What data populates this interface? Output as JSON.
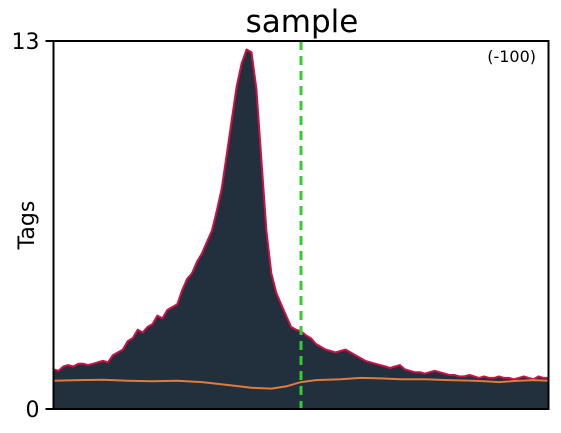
{
  "chart_data": {
    "type": "area",
    "title": "sample",
    "ylabel": "Tags",
    "xlabel": "",
    "annotation": "(-100)",
    "ylim": [
      0,
      13
    ],
    "y_ticks": [
      0,
      13
    ],
    "x_range": [
      0,
      100
    ],
    "grid": false,
    "marker_line": {
      "x": 50,
      "color": "#33cc33",
      "style": "dashed"
    },
    "series": [
      {
        "name": "",
        "kind": "area",
        "fill": "#222f3d",
        "stroke": "#cc1144",
        "points": [
          [
            0,
            1.4
          ],
          [
            1,
            1.35
          ],
          [
            2,
            1.5
          ],
          [
            3,
            1.55
          ],
          [
            4,
            1.5
          ],
          [
            5,
            1.6
          ],
          [
            6,
            1.6
          ],
          [
            7,
            1.55
          ],
          [
            8,
            1.6
          ],
          [
            9,
            1.65
          ],
          [
            10,
            1.7
          ],
          [
            11,
            1.65
          ],
          [
            12,
            1.9
          ],
          [
            13,
            2.0
          ],
          [
            14,
            2.1
          ],
          [
            15,
            2.4
          ],
          [
            16,
            2.5
          ],
          [
            17,
            2.8
          ],
          [
            18,
            2.7
          ],
          [
            19,
            2.9
          ],
          [
            20,
            3.0
          ],
          [
            21,
            3.3
          ],
          [
            22,
            3.2
          ],
          [
            23,
            3.5
          ],
          [
            24,
            3.6
          ],
          [
            25,
            3.7
          ],
          [
            26,
            4.2
          ],
          [
            27,
            4.6
          ],
          [
            28,
            4.8
          ],
          [
            29,
            5.2
          ],
          [
            30,
            5.5
          ],
          [
            31,
            5.9
          ],
          [
            32,
            6.3
          ],
          [
            33,
            7.0
          ],
          [
            34,
            7.8
          ],
          [
            35,
            9.0
          ],
          [
            36,
            10.2
          ],
          [
            37,
            11.4
          ],
          [
            38,
            12.2
          ],
          [
            39,
            12.7
          ],
          [
            40,
            12.6
          ],
          [
            41,
            11.3
          ],
          [
            42,
            8.8
          ],
          [
            43,
            6.3
          ],
          [
            44,
            4.8
          ],
          [
            45,
            4.1
          ],
          [
            46,
            3.7
          ],
          [
            47,
            3.3
          ],
          [
            48,
            2.9
          ],
          [
            49,
            2.8
          ],
          [
            50,
            2.75
          ],
          [
            51,
            2.6
          ],
          [
            52,
            2.5
          ],
          [
            53,
            2.3
          ],
          [
            54,
            2.2
          ],
          [
            55,
            2.1
          ],
          [
            56,
            2.05
          ],
          [
            57,
            2.0
          ],
          [
            58,
            2.05
          ],
          [
            59,
            2.1
          ],
          [
            60,
            2.0
          ],
          [
            61,
            1.9
          ],
          [
            62,
            1.8
          ],
          [
            63,
            1.7
          ],
          [
            64,
            1.65
          ],
          [
            65,
            1.6
          ],
          [
            66,
            1.55
          ],
          [
            67,
            1.5
          ],
          [
            68,
            1.45
          ],
          [
            69,
            1.5
          ],
          [
            70,
            1.55
          ],
          [
            71,
            1.4
          ],
          [
            72,
            1.35
          ],
          [
            73,
            1.3
          ],
          [
            74,
            1.3
          ],
          [
            75,
            1.25
          ],
          [
            76,
            1.3
          ],
          [
            77,
            1.35
          ],
          [
            78,
            1.3
          ],
          [
            79,
            1.25
          ],
          [
            80,
            1.2
          ],
          [
            81,
            1.2
          ],
          [
            82,
            1.15
          ],
          [
            83,
            1.15
          ],
          [
            84,
            1.2
          ],
          [
            85,
            1.15
          ],
          [
            86,
            1.1
          ],
          [
            87,
            1.15
          ],
          [
            88,
            1.1
          ],
          [
            89,
            1.1
          ],
          [
            90,
            1.15
          ],
          [
            91,
            1.1
          ],
          [
            92,
            1.1
          ],
          [
            93,
            1.05
          ],
          [
            94,
            1.1
          ],
          [
            95,
            1.15
          ],
          [
            96,
            1.1
          ],
          [
            97,
            1.05
          ],
          [
            98,
            1.15
          ],
          [
            99,
            1.1
          ],
          [
            100,
            1.1
          ]
        ]
      },
      {
        "name": "",
        "kind": "line",
        "stroke": "#e07b39",
        "points": [
          [
            0,
            1.0
          ],
          [
            5,
            1.02
          ],
          [
            10,
            1.03
          ],
          [
            15,
            1.0
          ],
          [
            20,
            0.98
          ],
          [
            25,
            1.0
          ],
          [
            30,
            0.95
          ],
          [
            35,
            0.85
          ],
          [
            40,
            0.75
          ],
          [
            44,
            0.72
          ],
          [
            47,
            0.8
          ],
          [
            50,
            0.95
          ],
          [
            53,
            1.02
          ],
          [
            58,
            1.05
          ],
          [
            62,
            1.1
          ],
          [
            66,
            1.08
          ],
          [
            70,
            1.05
          ],
          [
            75,
            1.05
          ],
          [
            80,
            1.02
          ],
          [
            85,
            1.0
          ],
          [
            88,
            0.97
          ],
          [
            90,
            0.95
          ],
          [
            94,
            1.0
          ],
          [
            97,
            1.02
          ],
          [
            100,
            1.0
          ]
        ]
      }
    ]
  }
}
